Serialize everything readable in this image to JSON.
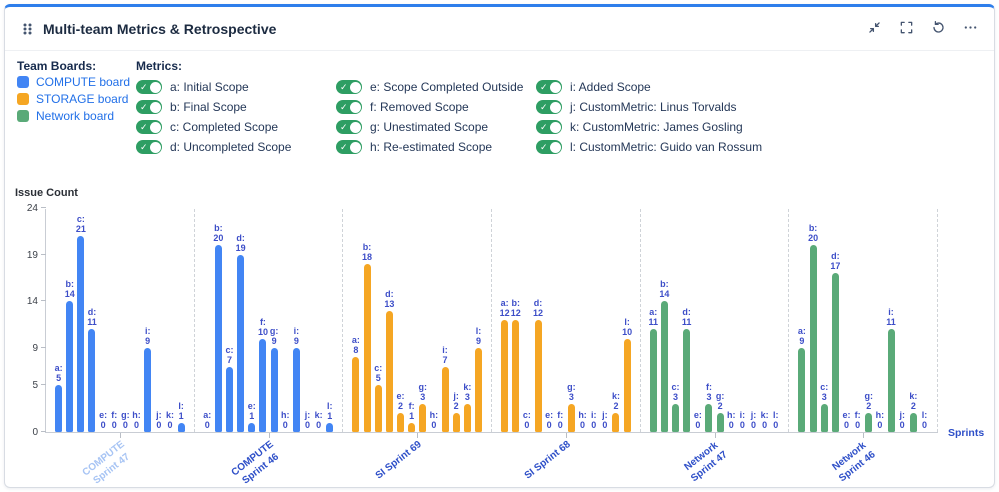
{
  "header": {
    "title": "Multi-team Metrics & Retrospective",
    "icons": {
      "drag_handle": "grip-dots",
      "collapse": "arrows-inward",
      "fullscreen": "corner-brackets",
      "refresh": "circular-arrow",
      "more": "ellipsis"
    }
  },
  "legend": {
    "label": "Team Boards:",
    "boards": [
      {
        "name": "COMPUTE board",
        "color": "#4285F4"
      },
      {
        "name": "STORAGE board",
        "color": "#F5A623"
      },
      {
        "name": "Network board",
        "color": "#5AAA78"
      }
    ]
  },
  "metrics": {
    "label": "Metrics:",
    "check_glyph": "✓",
    "toggle_color": "#2E9E63",
    "items": [
      {
        "key": "a",
        "label": "a: Initial Scope",
        "enabled": true
      },
      {
        "key": "b",
        "label": "b: Final Scope",
        "enabled": true
      },
      {
        "key": "c",
        "label": "c: Completed Scope",
        "enabled": true
      },
      {
        "key": "d",
        "label": "d: Uncompleted Scope",
        "enabled": true
      },
      {
        "key": "e",
        "label": "e: Scope Completed Outside",
        "enabled": true
      },
      {
        "key": "f",
        "label": "f: Removed Scope",
        "enabled": true
      },
      {
        "key": "g",
        "label": "g: Unestimated Scope",
        "enabled": true
      },
      {
        "key": "h",
        "label": "h: Re-estimated Scope",
        "enabled": true
      },
      {
        "key": "i",
        "label": "i: Added Scope",
        "enabled": true
      },
      {
        "key": "j",
        "label": "j: CustomMetric: Linus Torvalds",
        "enabled": true
      },
      {
        "key": "k",
        "label": "k: CustomMetric: James Gosling",
        "enabled": true
      },
      {
        "key": "l",
        "label": "l: CustomMetric: Guido van Rossum",
        "enabled": true
      }
    ]
  },
  "chart_data": {
    "type": "bar",
    "ylabel": "Issue Count",
    "xlabel": "Sprints",
    "ylim": [
      0,
      24
    ],
    "yticks": [
      0,
      5,
      9,
      14,
      19,
      24
    ],
    "grid": false,
    "value_label_color": "#3D4EC8",
    "metric_keys": [
      "a",
      "b",
      "c",
      "d",
      "e",
      "f",
      "g",
      "h",
      "i",
      "j",
      "k",
      "l"
    ],
    "groups": [
      {
        "sprint": "COMPUTE Sprint 47",
        "label_lines": [
          "COMPUTE",
          "Sprint 47"
        ],
        "board": "COMPUTE board",
        "color": "#4285F4",
        "faded_label": true,
        "values": [
          5,
          14,
          21,
          11,
          0,
          0,
          0,
          0,
          9,
          0,
          0,
          1
        ]
      },
      {
        "sprint": "COMPUTE Sprint 46",
        "label_lines": [
          "COMPUTE",
          "Sprint 46"
        ],
        "board": "COMPUTE board",
        "color": "#4285F4",
        "faded_label": false,
        "values": [
          0,
          20,
          7,
          19,
          1,
          10,
          9,
          0,
          9,
          0,
          0,
          1
        ]
      },
      {
        "sprint": "SI Sprint 69",
        "label_lines": [
          "SI Sprint 69"
        ],
        "board": "STORAGE board",
        "color": "#F5A623",
        "faded_label": false,
        "values": [
          8,
          18,
          5,
          13,
          2,
          1,
          3,
          0,
          7,
          2,
          3,
          9
        ]
      },
      {
        "sprint": "SI Sprint 68",
        "label_lines": [
          "SI Sprint 68"
        ],
        "board": "STORAGE board",
        "color": "#F5A623",
        "faded_label": false,
        "values": [
          12,
          12,
          0,
          12,
          0,
          0,
          3,
          0,
          0,
          0,
          2,
          10
        ]
      },
      {
        "sprint": "Network Sprint 47",
        "label_lines": [
          "Network",
          "Sprint 47"
        ],
        "board": "Network board",
        "color": "#5AAA78",
        "faded_label": false,
        "values": [
          11,
          14,
          3,
          11,
          0,
          3,
          2,
          0,
          0,
          0,
          0,
          0
        ]
      },
      {
        "sprint": "Network Sprint 46",
        "label_lines": [
          "Network",
          "Sprint 46"
        ],
        "board": "Network board",
        "color": "#5AAA78",
        "faded_label": false,
        "values": [
          9,
          20,
          3,
          17,
          0,
          0,
          2,
          0,
          11,
          0,
          2,
          0
        ]
      }
    ]
  }
}
